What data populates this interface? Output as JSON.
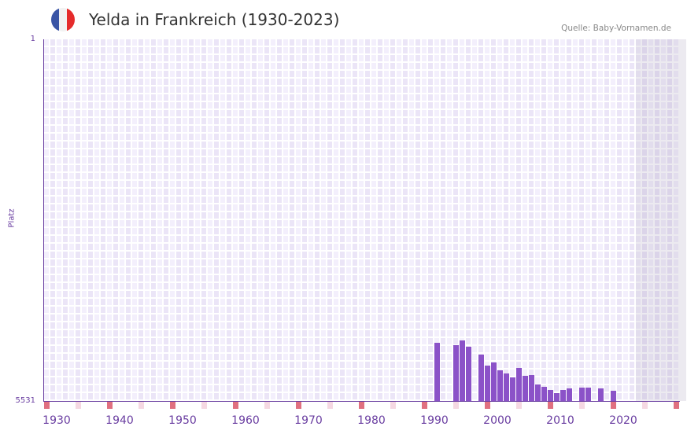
{
  "header": {
    "title": "Yelda in Frankreich (1930-2023)",
    "source": "Quelle: Baby-Vornamen.de",
    "flag_colors": [
      "#3a55a5",
      "#f2f2f2",
      "#e52b2b"
    ]
  },
  "chart_data": {
    "type": "bar",
    "title": "Yelda in Frankreich (1930-2023)",
    "ylabel": "Platz",
    "ylim": [
      5531,
      1
    ],
    "y_ticks": [
      "1",
      "5531"
    ],
    "x_range": [
      1928,
      2029
    ],
    "x_ticks": [
      "1930",
      "1940",
      "1950",
      "1960",
      "1970",
      "1980",
      "1990",
      "2000",
      "2010",
      "2020"
    ],
    "bar_color": "#8b52c8",
    "marker_colors": {
      "strong": "#e07080",
      "light": "#f5d8e2"
    },
    "series": [
      {
        "name": "Platz",
        "points": [
          [
            1990,
            4638
          ],
          [
            1993,
            4677
          ],
          [
            1994,
            4605
          ],
          [
            1995,
            4702
          ],
          [
            1997,
            4822
          ],
          [
            1998,
            4990
          ],
          [
            1999,
            4942
          ],
          [
            2000,
            5062
          ],
          [
            2001,
            5110
          ],
          [
            2002,
            5170
          ],
          [
            2003,
            5026
          ],
          [
            2004,
            5146
          ],
          [
            2005,
            5134
          ],
          [
            2006,
            5279
          ],
          [
            2007,
            5315
          ],
          [
            2008,
            5363
          ],
          [
            2009,
            5411
          ],
          [
            2010,
            5363
          ],
          [
            2011,
            5339
          ],
          [
            2013,
            5327
          ],
          [
            2014,
            5327
          ],
          [
            2016,
            5339
          ],
          [
            2018,
            5375
          ]
        ]
      }
    ],
    "shaded_from_year": 2022
  }
}
